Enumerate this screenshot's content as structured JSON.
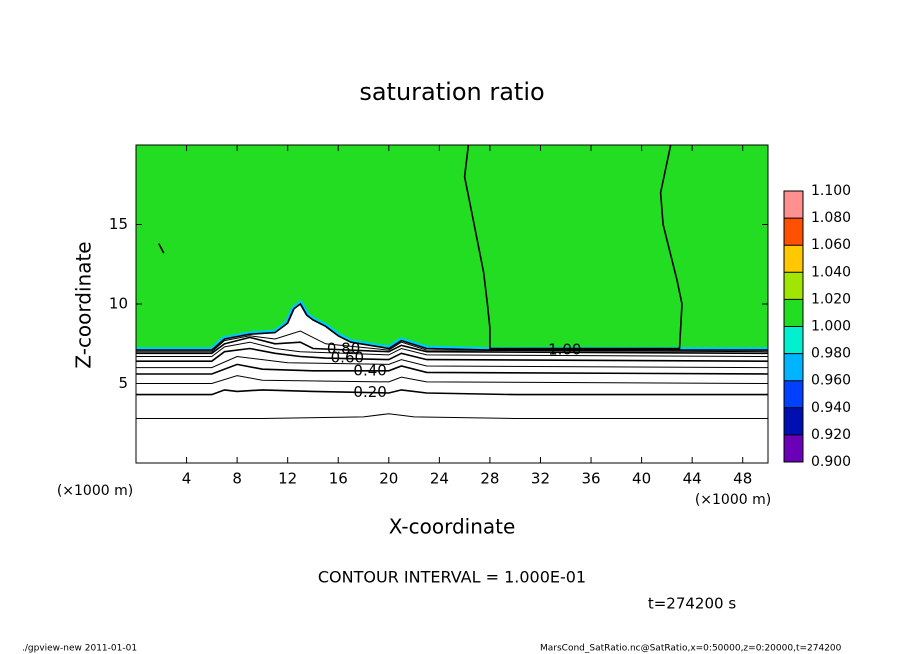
{
  "chart_data": {
    "type": "contour",
    "title": "saturation ratio",
    "xlabel": "X-coordinate",
    "ylabel": "Z-coordinate",
    "x_unit": "(×1000 m)",
    "y_unit": "(×1000 m)",
    "xlim": [
      0,
      50
    ],
    "ylim": [
      0,
      20
    ],
    "xticks": [
      4,
      8,
      12,
      16,
      20,
      24,
      28,
      32,
      36,
      40,
      44,
      48
    ],
    "yticks": [
      5,
      10,
      15
    ],
    "field_color": "#22dd22",
    "contours": [
      {
        "x": [
          0,
          10,
          18,
          20,
          22,
          30,
          50
        ],
        "y": [
          2.8,
          2.8,
          2.9,
          3.1,
          2.9,
          2.8,
          2.8
        ]
      },
      {
        "x": [
          0,
          6,
          7,
          8,
          10,
          14,
          20,
          21,
          23,
          30,
          50
        ],
        "y": [
          4.3,
          4.3,
          4.6,
          4.5,
          4.6,
          4.5,
          4.4,
          4.6,
          4.4,
          4.3,
          4.3
        ],
        "label": "0.20",
        "label_x": 17.2
      },
      {
        "x": [
          0,
          6,
          8,
          10,
          20,
          21,
          23,
          50
        ],
        "y": [
          5.0,
          5.0,
          5.5,
          5.2,
          5.1,
          5.4,
          5.1,
          5.0
        ]
      },
      {
        "x": [
          0,
          6,
          8,
          10,
          14,
          20,
          21,
          23,
          50
        ],
        "y": [
          5.6,
          5.6,
          6.2,
          5.9,
          5.8,
          5.8,
          6.1,
          5.7,
          5.6
        ],
        "label": "0.40",
        "label_x": 17.2
      },
      {
        "x": [
          0,
          6,
          8,
          10,
          12,
          20,
          21,
          23,
          50
        ],
        "y": [
          6.0,
          6.0,
          6.7,
          6.5,
          6.3,
          6.2,
          6.5,
          6.1,
          6.0
        ]
      },
      {
        "x": [
          0,
          6,
          7,
          9,
          11,
          13,
          15,
          20,
          21,
          23,
          50
        ],
        "y": [
          6.4,
          6.4,
          7.0,
          7.2,
          6.9,
          6.7,
          6.6,
          6.5,
          6.9,
          6.5,
          6.4
        ],
        "label": "0.60",
        "label_x": 15.4
      },
      {
        "x": [
          0,
          6,
          7,
          9,
          11,
          13,
          20,
          21,
          23,
          50
        ],
        "y": [
          6.7,
          6.7,
          7.3,
          7.6,
          7.2,
          7.0,
          6.8,
          7.2,
          6.8,
          6.7
        ]
      },
      {
        "x": [
          0,
          6,
          7,
          9,
          11,
          13,
          14,
          20,
          21,
          23,
          50
        ],
        "y": [
          6.9,
          6.9,
          7.5,
          7.9,
          7.5,
          7.6,
          7.2,
          7.0,
          7.4,
          7.0,
          6.9
        ],
        "label": "0.80",
        "label_x": 15.1
      },
      {
        "x": [
          0,
          6,
          7,
          9,
          11,
          13,
          15,
          20,
          21,
          23,
          50
        ],
        "y": [
          7.0,
          7.0,
          7.7,
          8.0,
          7.8,
          8.3,
          7.5,
          7.1,
          7.6,
          7.1,
          7.0
        ]
      },
      {
        "x": [
          0,
          6,
          7,
          9,
          11,
          12,
          12.5,
          13,
          13.5,
          14,
          15,
          16,
          17,
          20,
          21,
          23,
          28,
          43,
          50,
          null,
          26.3,
          26,
          26.5,
          27,
          27.5,
          27.8,
          28,
          28,
          36,
          43,
          43.2,
          42.8,
          41.7,
          41.5,
          42.3,
          null,
          1.8,
          2.2
        ],
        "y": [
          7.1,
          7.1,
          7.8,
          8.1,
          8.2,
          8.8,
          9.7,
          10,
          9.3,
          9.0,
          8.6,
          8.0,
          7.6,
          7.2,
          7.7,
          7.2,
          7.1,
          7.1,
          7.1,
          null,
          20,
          18,
          16,
          14,
          12,
          10,
          8.5,
          7.2,
          7.2,
          7.2,
          10,
          11.5,
          15,
          17,
          20,
          null,
          13.8,
          13.2
        ],
        "label": "1.00",
        "label_x": 32.6
      }
    ],
    "colorbar": {
      "ticks": [
        {
          "value": 0.9,
          "label": "0.900"
        },
        {
          "value": 0.92,
          "label": "0.920"
        },
        {
          "value": 0.94,
          "label": "0.940"
        },
        {
          "value": 0.96,
          "label": "0.960"
        },
        {
          "value": 0.98,
          "label": "0.980"
        },
        {
          "value": 1.0,
          "label": "1.000"
        },
        {
          "value": 1.02,
          "label": "1.020"
        },
        {
          "value": 1.04,
          "label": "1.040"
        },
        {
          "value": 1.06,
          "label": "1.060"
        },
        {
          "value": 1.08,
          "label": "1.080"
        },
        {
          "value": 1.1,
          "label": "1.100"
        }
      ],
      "colors": [
        "#6a00b8",
        "#0010b0",
        "#0040ff",
        "#00b4ff",
        "#00f0d0",
        "#22dd22",
        "#a0e600",
        "#ffc800",
        "#ff5000",
        "#ff9090"
      ]
    },
    "annotation": "CONTOUR INTERVAL = 1.000E-01",
    "time_label": "t=274200 s",
    "footer_left": "./gpview-new   2011-01-01",
    "footer_right": "MarsCond_SatRatio.nc@SatRatio,x=0:50000,z=0:20000,t=274200"
  }
}
